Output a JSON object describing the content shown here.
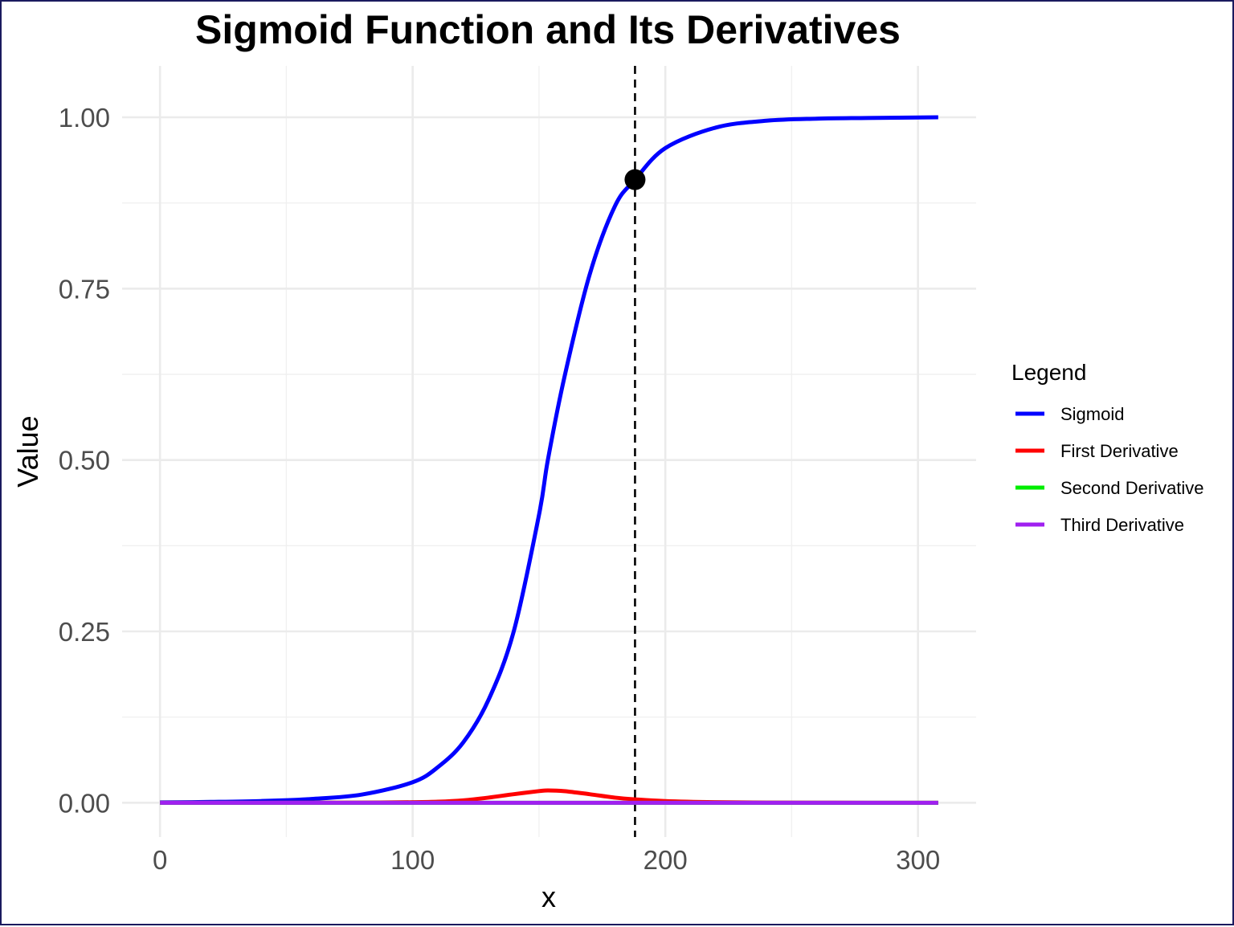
{
  "chart_data": {
    "type": "line",
    "title": "Sigmoid Function and Its Derivatives",
    "xlabel": "x",
    "ylabel": "Value",
    "xlim": [
      -15,
      323
    ],
    "ylim": [
      -0.05,
      1.075
    ],
    "x_ticks": [
      0,
      100,
      200,
      300
    ],
    "x_tick_labels": [
      "0",
      "100",
      "200",
      "300"
    ],
    "y_ticks": [
      0,
      0.25,
      0.5,
      0.75,
      1.0
    ],
    "y_tick_labels": [
      "0.00",
      "0.25",
      "0.50",
      "0.75",
      "1.00"
    ],
    "grid": true,
    "legend": {
      "title": "Legend",
      "position": "right"
    },
    "x": [
      0,
      20,
      40,
      60,
      80,
      100,
      110,
      120,
      130,
      140,
      150,
      153.5,
      160,
      170,
      180,
      188,
      200,
      220,
      240,
      260,
      280,
      308
    ],
    "series": [
      {
        "name": "Sigmoid",
        "color": "#0000ff",
        "values": [
          0.0005,
          0.0012,
          0.0025,
          0.0055,
          0.012,
          0.03,
          0.052,
          0.088,
          0.15,
          0.25,
          0.42,
          0.5,
          0.62,
          0.77,
          0.87,
          0.909,
          0.955,
          0.985,
          0.995,
          0.998,
          0.999,
          1.0
        ]
      },
      {
        "name": "First Derivative",
        "color": "#ff0000",
        "values": [
          0.0,
          0.0,
          0.0,
          0.0001,
          0.0003,
          0.0008,
          0.0015,
          0.0035,
          0.0075,
          0.0125,
          0.017,
          0.018,
          0.017,
          0.0125,
          0.0075,
          0.005,
          0.0025,
          0.0008,
          0.0002,
          0.0001,
          0.0,
          0.0
        ]
      },
      {
        "name": "Second Derivative",
        "color": "#00ee00",
        "values": [
          0,
          0,
          0,
          0,
          0,
          0,
          0,
          0,
          0,
          0,
          0,
          0,
          0,
          0,
          0,
          0,
          0,
          0,
          0,
          0,
          0,
          0
        ]
      },
      {
        "name": "Third Derivative",
        "color": "#a020f0",
        "values": [
          0,
          0,
          0,
          0,
          0,
          0,
          0,
          0,
          0,
          0,
          0,
          0,
          0,
          0,
          0,
          0,
          0,
          0,
          0,
          0,
          0,
          0
        ]
      }
    ],
    "annotations": {
      "vline_x": 188,
      "point": {
        "x": 188,
        "y": 0.909
      }
    }
  }
}
